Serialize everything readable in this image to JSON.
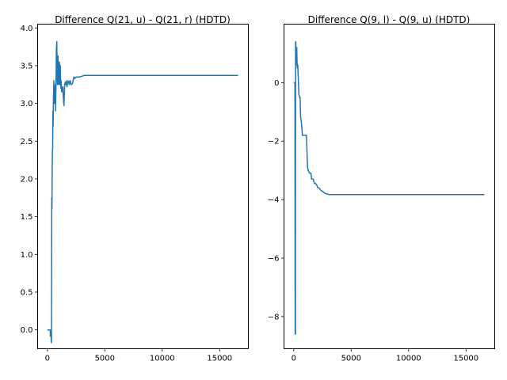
{
  "chart_data": [
    {
      "type": "line",
      "title": "Difference Q(21, u) - Q(21, r) (HDTD)",
      "xlabel": "",
      "ylabel": "",
      "xlim": [
        -850,
        17500
      ],
      "ylim": [
        -0.25,
        4.05
      ],
      "grid": false,
      "color": "#1f77b4",
      "xticks": [
        0,
        5000,
        10000,
        15000
      ],
      "yticks": [
        0.0,
        0.5,
        1.0,
        1.5,
        2.0,
        2.5,
        3.0,
        3.5,
        4.0
      ],
      "xtick_labels": [
        "0",
        "5000",
        "10000",
        "15000"
      ],
      "ytick_labels": [
        "0.0",
        "0.5",
        "1.0",
        "1.5",
        "2.0",
        "2.5",
        "3.0",
        "3.5",
        "4.0"
      ],
      "series": [
        {
          "x": [
            0,
            250,
            260,
            300,
            330,
            345,
            360,
            380,
            400,
            420,
            440,
            460,
            480,
            500,
            520,
            540,
            560,
            600,
            640,
            680,
            700,
            720,
            750,
            780,
            820,
            860,
            880,
            900,
            920,
            950,
            980,
            1000,
            1020,
            1050,
            1080,
            1100,
            1120,
            1150,
            1180,
            1200,
            1250,
            1300,
            1350,
            1400,
            1450,
            1500,
            1550,
            1600,
            1650,
            1700,
            1750,
            1800,
            1850,
            1900,
            1950,
            2000,
            2050,
            2100,
            2200,
            2300,
            2400,
            2500,
            2600,
            2800,
            3000,
            3200,
            3500,
            3800,
            4200,
            5000,
            8000,
            12000,
            16600
          ],
          "y": [
            0.0,
            0.0,
            -0.08,
            -0.08,
            -0.12,
            -0.17,
            -0.1,
            1.75,
            1.6,
            2.15,
            2.38,
            2.4,
            2.9,
            2.7,
            3.05,
            3.1,
            3.3,
            3.0,
            3.1,
            3.25,
            2.9,
            3.05,
            3.2,
            3.7,
            3.82,
            3.3,
            3.25,
            3.45,
            3.63,
            3.4,
            3.25,
            3.3,
            3.4,
            3.55,
            3.25,
            3.3,
            3.5,
            3.25,
            3.2,
            3.3,
            3.15,
            3.2,
            3.22,
            3.05,
            2.97,
            3.25,
            3.28,
            3.25,
            3.3,
            3.22,
            3.26,
            3.3,
            3.28,
            3.25,
            3.3,
            3.3,
            3.25,
            3.25,
            3.27,
            3.35,
            3.33,
            3.35,
            3.35,
            3.35,
            3.36,
            3.37,
            3.37,
            3.37,
            3.37,
            3.37,
            3.37,
            3.37,
            3.37
          ]
        }
      ]
    },
    {
      "type": "line",
      "title": "Difference Q(9, l) - Q(9, u) (HDTD)",
      "xlabel": "",
      "ylabel": "",
      "xlim": [
        -850,
        17500
      ],
      "ylim": [
        -9.1,
        2.0
      ],
      "grid": false,
      "color": "#1f77b4",
      "xticks": [
        0,
        5000,
        10000,
        15000
      ],
      "yticks": [
        -8,
        -6,
        -4,
        -2,
        0
      ],
      "xtick_labels": [
        "0",
        "5000",
        "10000",
        "15000"
      ],
      "ytick_labels": [
        "−8",
        "−6",
        "−4",
        "−2",
        "0"
      ],
      "series": [
        {
          "x": [
            0,
            100,
            110,
            120,
            150,
            160,
            180,
            200,
            220,
            260,
            300,
            350,
            400,
            450,
            500,
            550,
            600,
            650,
            700,
            750,
            800,
            900,
            1000,
            1100,
            1200,
            1300,
            1400,
            1500,
            1550,
            1600,
            1650,
            1700,
            1800,
            1900,
            2000,
            2100,
            2200,
            2300,
            2400,
            2500,
            2600,
            2700,
            2800,
            2900,
            3000,
            3100,
            3200,
            3300,
            3400,
            3500,
            3700,
            4000,
            5000,
            8000,
            12000,
            16600
          ],
          "y": [
            0.0,
            0.0,
            -3.0,
            -8.6,
            -8.6,
            1.4,
            1.4,
            0.6,
            1.2,
            1.2,
            0.5,
            0.6,
            0.1,
            -0.4,
            -0.5,
            -0.5,
            -1.2,
            -1.3,
            -1.5,
            -1.8,
            -1.8,
            -1.8,
            -1.8,
            -1.8,
            -2.9,
            -3.05,
            -3.1,
            -3.1,
            -3.3,
            -3.3,
            -3.3,
            -3.3,
            -3.45,
            -3.45,
            -3.5,
            -3.6,
            -3.6,
            -3.65,
            -3.7,
            -3.72,
            -3.75,
            -3.78,
            -3.8,
            -3.8,
            -3.82,
            -3.83,
            -3.83,
            -3.83,
            -3.83,
            -3.83,
            -3.83,
            -3.83,
            -3.83,
            -3.83,
            -3.83,
            -3.83
          ]
        }
      ]
    }
  ]
}
